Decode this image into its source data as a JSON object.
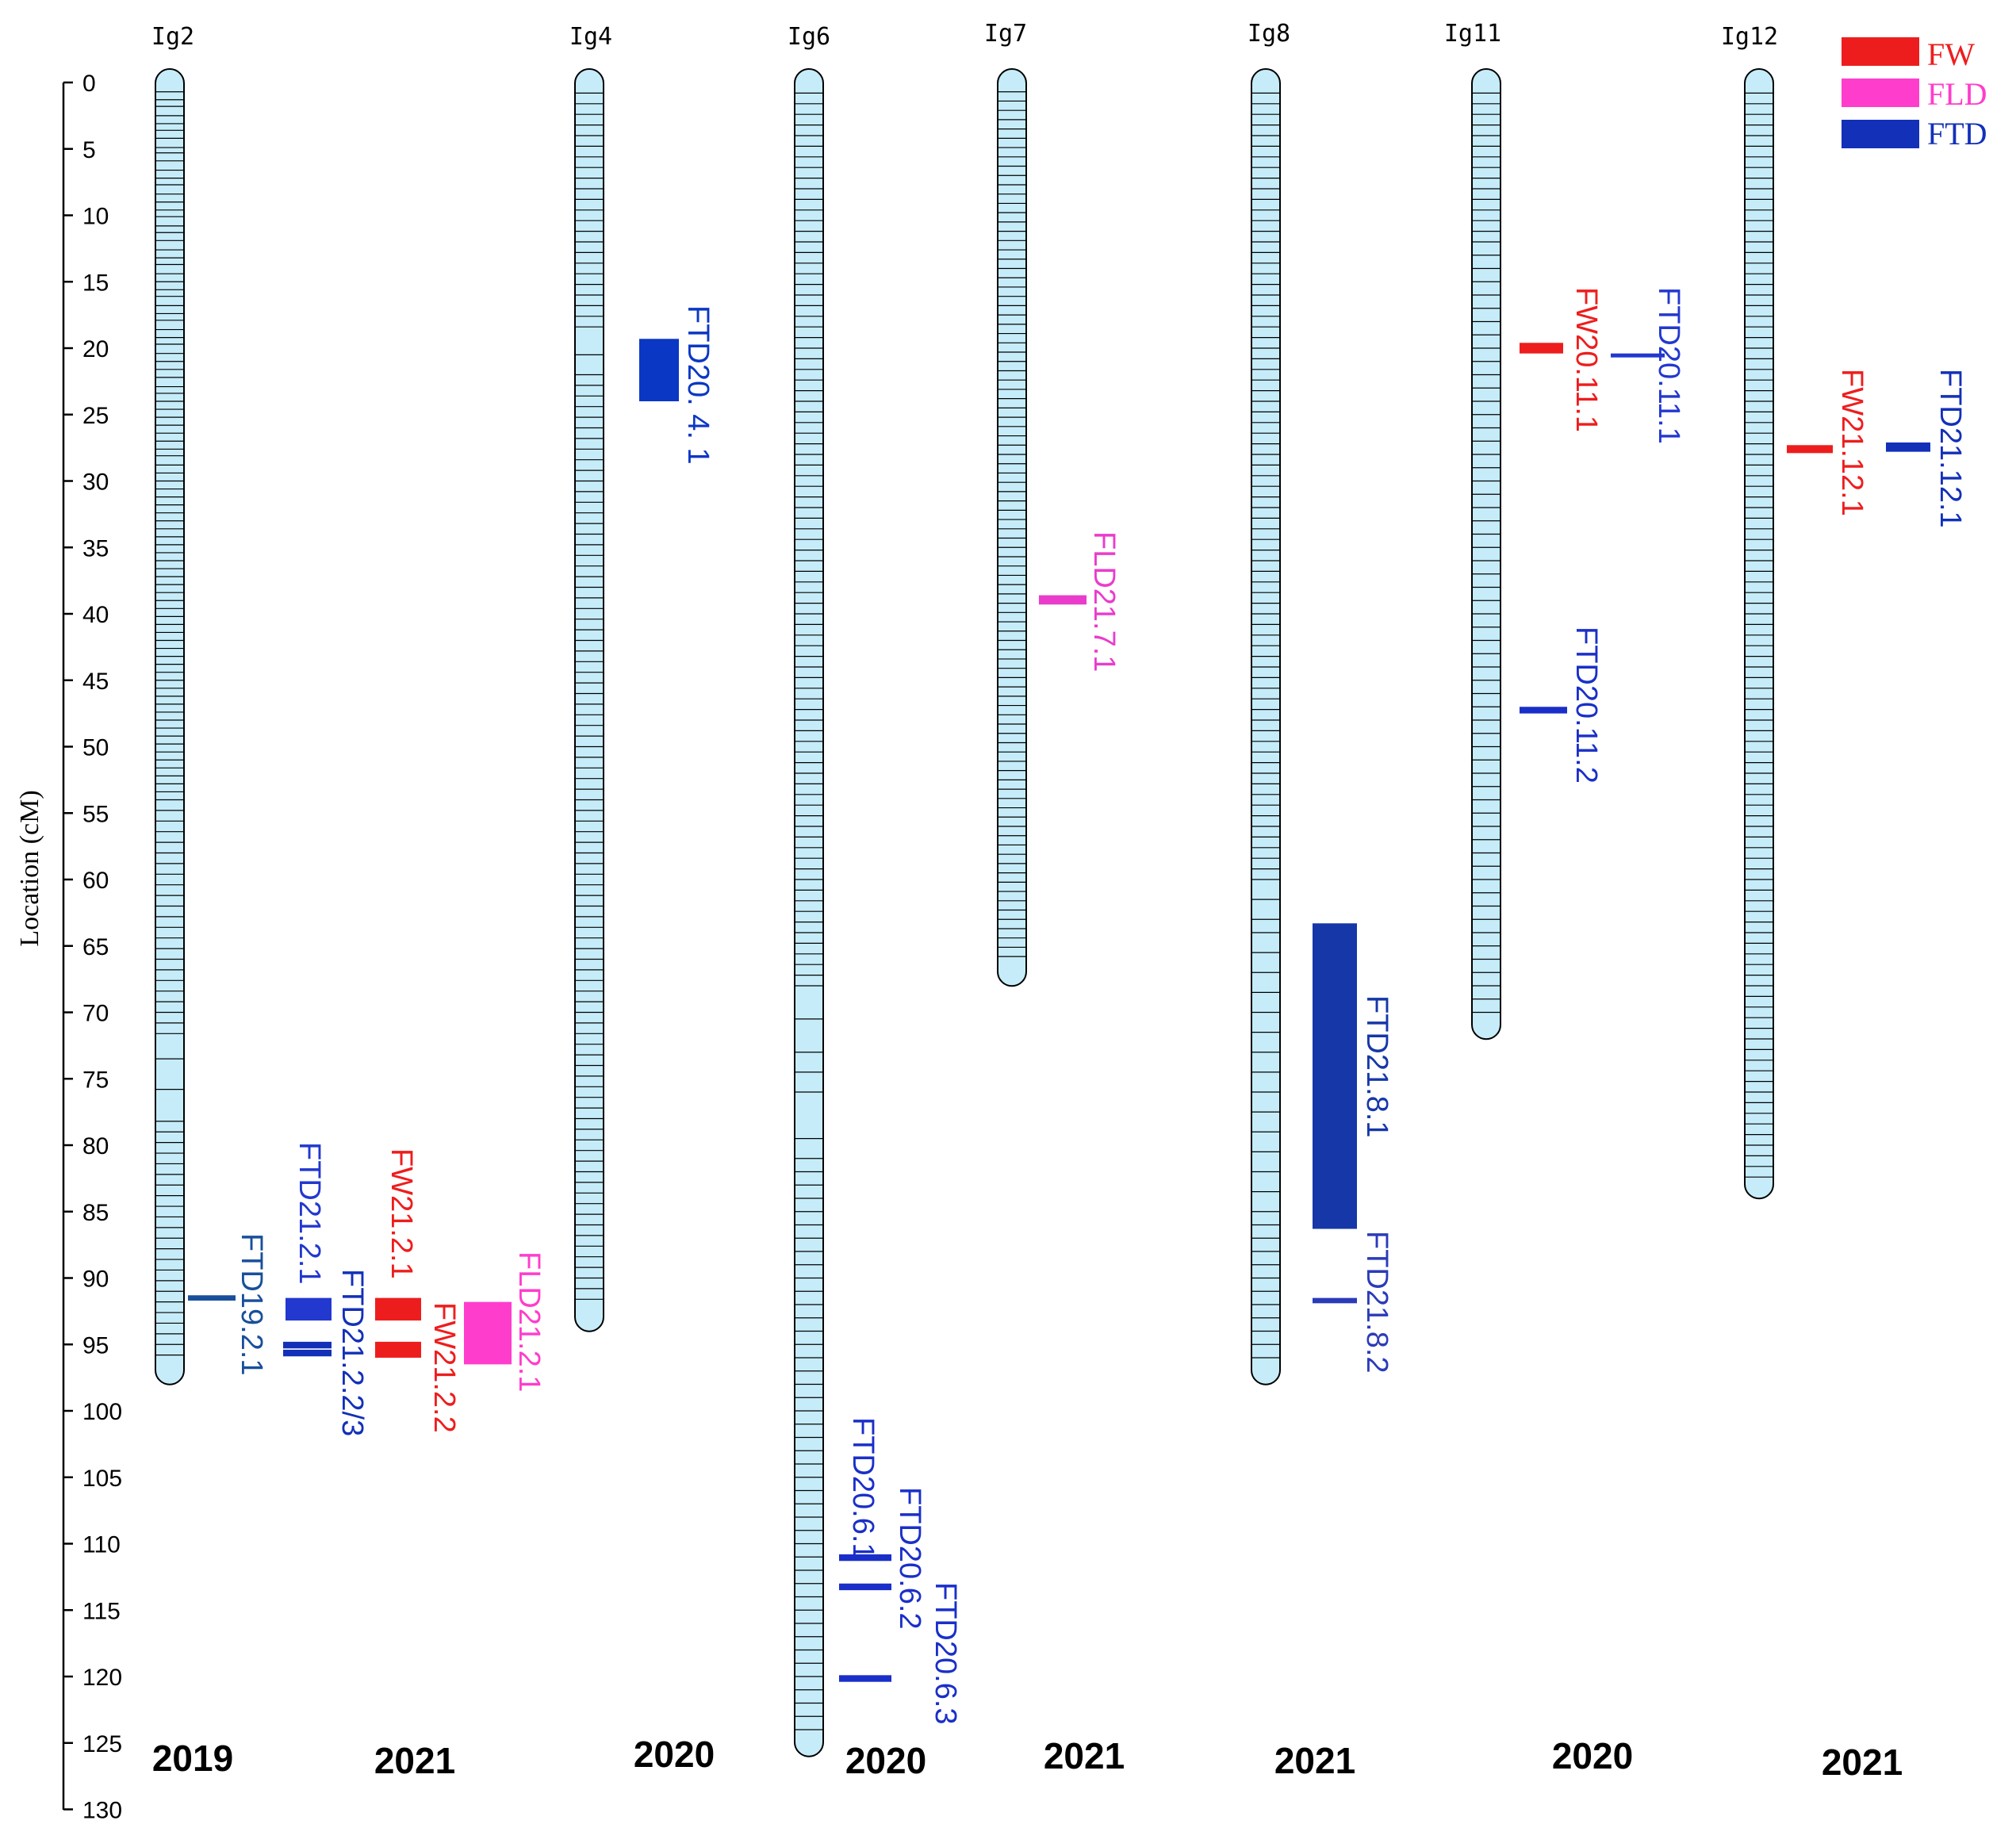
{
  "axis": {
    "title": "Location (cM)",
    "min": 0,
    "max": 130,
    "step": 5,
    "tick_labels": [
      "0",
      "5",
      "10",
      "15",
      "20",
      "25",
      "30",
      "35",
      "40",
      "45",
      "50",
      "55",
      "60",
      "65",
      "70",
      "75",
      "80",
      "85",
      "90",
      "95",
      "100",
      "105",
      "110",
      "115",
      "120",
      "125",
      "130"
    ]
  },
  "legend": [
    {
      "label": "FW",
      "color": "#ee1d1d"
    },
    {
      "label": "FLD",
      "color": "#ff3dcc"
    },
    {
      "label": "FTD",
      "color": "#1330b8"
    }
  ],
  "chromosomes": [
    {
      "name": "Ig2",
      "length": 97,
      "markers": [
        0.7,
        1.3,
        1.8,
        2.5,
        3.1,
        3.6,
        4.2,
        4.9,
        5.3,
        5.9,
        6.6,
        7.2,
        7.7,
        8.4,
        9.0,
        9.6,
        10.1,
        10.8,
        11.3,
        11.9,
        12.6,
        13.2,
        13.7,
        14.4,
        15.0,
        15.6,
        16.1,
        16.8,
        17.4,
        17.9,
        18.6,
        19.2,
        19.7,
        20.4,
        21.0,
        21.6,
        22.2,
        22.9,
        23.4,
        24.0,
        24.6,
        25.2,
        25.8,
        26.4,
        27.0,
        27.6,
        28.1,
        28.8,
        29.4,
        30.0,
        30.6,
        31.2,
        31.8,
        32.4,
        33.0,
        33.6,
        34.2,
        34.8,
        35.4,
        36.0,
        36.6,
        37.2,
        37.8,
        38.4,
        39.0,
        39.6,
        40.2,
        40.8,
        41.4,
        42.0,
        42.6,
        43.2,
        43.8,
        44.4,
        45.0,
        45.6,
        46.2,
        46.8,
        47.4,
        48.0,
        48.6,
        49.2,
        49.8,
        50.4,
        51.0,
        51.6,
        52.2,
        52.8,
        53.4,
        54.0,
        54.8,
        55.6,
        56.4,
        57.2,
        58.0,
        58.8,
        59.6,
        60.4,
        61.2,
        62.0,
        62.8,
        63.6,
        64.4,
        65.2,
        66.0,
        66.8,
        67.6,
        68.4,
        69.2,
        70.0,
        70.8,
        71.6,
        73.5,
        75.8,
        78.2,
        79.0,
        79.8,
        80.6,
        81.4,
        82.2,
        83.0,
        83.8,
        84.6,
        85.4,
        86.2,
        87.0,
        87.8,
        88.6,
        89.4,
        90.2,
        91.0,
        91.8,
        92.6,
        93.4,
        94.2,
        95.0,
        95.8
      ]
    },
    {
      "name": "Ig4",
      "length": 93,
      "markers": [
        0.8,
        1.6,
        2.4,
        3.2,
        4.0,
        4.8,
        5.6,
        6.4,
        7.2,
        8.0,
        8.8,
        9.6,
        10.4,
        11.2,
        12.0,
        12.8,
        13.6,
        14.4,
        15.2,
        16.0,
        16.8,
        17.6,
        18.4,
        20.5,
        22.0,
        22.8,
        23.6,
        24.4,
        25.2,
        26.0,
        26.8,
        27.6,
        28.4,
        29.2,
        30.0,
        30.8,
        31.6,
        32.4,
        33.2,
        34.0,
        34.8,
        35.6,
        36.4,
        37.2,
        38.0,
        38.8,
        39.6,
        40.4,
        41.2,
        42.0,
        42.8,
        43.6,
        44.4,
        45.2,
        46.0,
        46.8,
        47.6,
        48.4,
        49.2,
        50.0,
        50.8,
        51.6,
        52.4,
        53.2,
        54.0,
        54.8,
        55.6,
        56.4,
        57.2,
        58.0,
        58.8,
        59.6,
        60.4,
        61.2,
        62.0,
        62.8,
        63.6,
        64.4,
        65.2,
        66.0,
        66.8,
        67.6,
        68.4,
        69.2,
        70.0,
        70.8,
        71.6,
        72.4,
        73.2,
        74.0,
        74.8,
        75.6,
        76.4,
        77.2,
        78.0,
        78.8,
        79.6,
        80.4,
        81.2,
        82.0,
        82.8,
        83.6,
        84.4,
        85.2,
        86.0,
        86.8,
        87.6,
        88.4,
        89.2,
        90.0,
        90.8,
        91.6
      ]
    },
    {
      "name": "Ig6",
      "length": 125,
      "markers": [
        0.8,
        1.6,
        2.4,
        3.2,
        4.0,
        4.8,
        5.6,
        6.4,
        7.2,
        8.0,
        8.8,
        9.6,
        10.4,
        11.2,
        12.0,
        12.8,
        13.6,
        14.4,
        15.2,
        16.0,
        16.8,
        17.6,
        18.4,
        19.2,
        20.0,
        20.8,
        21.6,
        22.4,
        23.2,
        24.0,
        24.8,
        25.6,
        26.4,
        27.2,
        28.0,
        28.8,
        29.6,
        30.4,
        31.2,
        32.0,
        32.8,
        33.6,
        34.4,
        35.2,
        36.0,
        36.8,
        37.6,
        38.4,
        39.2,
        40.0,
        40.8,
        41.6,
        42.4,
        43.2,
        44.0,
        44.8,
        45.6,
        46.4,
        47.2,
        48.0,
        48.8,
        49.6,
        50.4,
        51.2,
        52.0,
        52.8,
        53.6,
        54.4,
        55.2,
        56.0,
        56.8,
        57.6,
        58.4,
        59.2,
        60.0,
        60.8,
        61.6,
        62.4,
        63.2,
        64.0,
        64.8,
        65.6,
        66.4,
        67.2,
        68.0,
        70.5,
        73.0,
        74.5,
        76.0,
        79.5,
        81.0,
        82.0,
        83.0,
        84.0,
        85.0,
        86.0,
        87.0,
        88.0,
        89.0,
        90.0,
        91.0,
        92.0,
        93.0,
        94.0,
        95.0,
        96.0,
        97.0,
        98.0,
        99.0,
        100.0,
        101.0,
        102.0,
        103.0,
        104.0,
        105.0,
        106.0,
        107.0,
        108.0,
        109.0,
        110.0,
        111.0,
        112.0,
        113.0,
        114.0,
        115.0,
        116.0,
        117.0,
        118.0,
        119.0,
        120.0,
        121.0,
        122.0,
        123.0,
        124.0
      ]
    },
    {
      "name": "Ig7",
      "length": 67,
      "markers": [
        0.7,
        1.4,
        2.1,
        2.8,
        3.5,
        4.2,
        4.9,
        5.6,
        6.3,
        7.0,
        7.7,
        8.4,
        9.1,
        9.8,
        10.5,
        11.2,
        11.9,
        12.6,
        13.3,
        14.0,
        14.7,
        15.4,
        16.1,
        16.8,
        17.5,
        18.2,
        18.9,
        19.6,
        20.3,
        21.0,
        21.7,
        22.4,
        23.1,
        23.8,
        24.5,
        25.2,
        25.9,
        26.6,
        27.3,
        28.0,
        28.7,
        29.4,
        30.1,
        30.8,
        31.5,
        32.2,
        32.9,
        33.6,
        34.3,
        35.0,
        35.7,
        36.4,
        37.1,
        37.8,
        38.5,
        39.2,
        39.9,
        40.6,
        41.3,
        42.0,
        42.7,
        43.4,
        44.1,
        44.8,
        45.5,
        46.2,
        46.9,
        47.6,
        48.3,
        49.0,
        49.7,
        50.4,
        51.1,
        51.8,
        52.5,
        53.2,
        53.9,
        54.6,
        55.3,
        56.0,
        56.7,
        57.4,
        58.1,
        58.8,
        59.5,
        60.2,
        60.9,
        61.6,
        62.3,
        63.0,
        63.7,
        64.4,
        65.1,
        65.8
      ]
    },
    {
      "name": "Ig8",
      "length": 97,
      "markers": [
        0.8,
        1.6,
        2.4,
        3.2,
        4.0,
        4.8,
        5.6,
        6.4,
        7.2,
        8.0,
        8.8,
        9.6,
        10.4,
        11.2,
        12.0,
        12.8,
        13.6,
        14.4,
        15.2,
        16.0,
        16.8,
        17.6,
        18.4,
        19.2,
        20.0,
        20.8,
        21.6,
        22.4,
        23.2,
        24.0,
        24.8,
        25.6,
        26.4,
        27.2,
        28.0,
        28.8,
        29.6,
        30.4,
        31.2,
        32.0,
        32.8,
        33.6,
        34.4,
        35.2,
        36.0,
        36.8,
        37.6,
        38.4,
        39.2,
        40.0,
        40.8,
        41.6,
        42.4,
        43.2,
        44.0,
        44.8,
        45.6,
        46.4,
        47.2,
        48.0,
        48.8,
        49.6,
        50.4,
        51.2,
        52.0,
        52.8,
        53.6,
        54.4,
        55.2,
        56.0,
        56.8,
        57.6,
        58.4,
        59.2,
        60.0,
        61.5,
        63.0,
        64.0,
        65.5,
        67.0,
        68.5,
        70.0,
        71.5,
        73.0,
        74.5,
        76.0,
        77.5,
        79.0,
        80.5,
        82.0,
        83.5,
        85.0,
        86.0,
        87.0,
        88.0,
        89.0,
        90.0,
        91.0,
        92.0,
        93.0,
        94.0,
        95.0,
        96.0
      ]
    },
    {
      "name": "Ig11",
      "length": 71,
      "markers": [
        0.8,
        1.6,
        2.4,
        3.2,
        4.0,
        4.8,
        5.6,
        6.4,
        7.2,
        8.0,
        8.8,
        9.6,
        10.4,
        11.2,
        12.0,
        13.0,
        14.0,
        15.0,
        16.0,
        17.0,
        18.0,
        19.0,
        20.0,
        21.0,
        22.0,
        23.0,
        24.0,
        25.0,
        26.0,
        27.0,
        28.0,
        29.0,
        30.0,
        31.0,
        32.0,
        33.0,
        34.0,
        35.0,
        36.0,
        37.0,
        38.0,
        39.0,
        40.0,
        41.0,
        42.0,
        43.0,
        44.0,
        45.0,
        46.0,
        47.0,
        48.0,
        49.0,
        50.0,
        51.0,
        52.0,
        53.0,
        54.0,
        55.0,
        56.0,
        57.0,
        58.0,
        59.0,
        60.0,
        61.0,
        62.0,
        63.0,
        64.0,
        65.0,
        66.0,
        67.0,
        68.0,
        69.0,
        70.0
      ]
    },
    {
      "name": "Ig12",
      "length": 83,
      "markers": [
        0.8,
        1.6,
        2.4,
        3.2,
        4.0,
        4.8,
        5.6,
        6.4,
        7.2,
        8.0,
        8.8,
        9.6,
        10.4,
        11.2,
        12.0,
        12.8,
        13.6,
        14.4,
        15.2,
        16.0,
        16.8,
        17.6,
        18.4,
        19.2,
        20.0,
        20.8,
        21.6,
        22.4,
        23.2,
        24.0,
        24.8,
        25.6,
        26.4,
        27.2,
        28.0,
        28.8,
        29.6,
        30.4,
        31.2,
        32.0,
        32.8,
        33.6,
        34.4,
        35.2,
        36.0,
        36.8,
        37.6,
        38.4,
        39.2,
        40.0,
        40.8,
        41.6,
        42.4,
        43.2,
        44.0,
        44.8,
        45.6,
        46.4,
        47.2,
        48.0,
        48.8,
        49.6,
        50.4,
        51.2,
        52.0,
        52.8,
        53.6,
        54.4,
        55.2,
        56.0,
        56.8,
        57.6,
        58.4,
        59.2,
        60.0,
        60.8,
        61.6,
        62.4,
        63.2,
        64.0,
        64.8,
        65.6,
        66.4,
        67.2,
        68.0,
        68.8,
        69.6,
        70.4,
        71.2,
        72.0,
        72.8,
        73.6,
        74.4,
        75.2,
        76.0,
        76.8,
        77.6,
        78.4,
        79.2,
        80.0,
        80.8,
        81.6,
        82.4
      ]
    }
  ],
  "qtls": [
    {
      "label": "FTD19.2.1",
      "trait": "FTD",
      "chrom": "Ig2",
      "start": 91.3,
      "end": 91.7,
      "color": "#184f9a"
    },
    {
      "label": "FTD21.2.1",
      "trait": "FTD",
      "chrom": "Ig2",
      "start": 91.5,
      "end": 93.2,
      "color": "#2238cf"
    },
    {
      "label": "FTD21.2.2/3",
      "trait": "FTD",
      "chrom": "Ig2",
      "start": 94.8,
      "end": 95.3,
      "color": "#1330b8"
    },
    {
      "label": "FW21.2.1",
      "trait": "FW",
      "chrom": "Ig2",
      "start": 91.5,
      "end": 93.2,
      "color": "#ee1d1d"
    },
    {
      "label": "FW21.2.2",
      "trait": "FW",
      "chrom": "Ig2",
      "start": 94.8,
      "end": 96.0,
      "color": "#ee1d1d"
    },
    {
      "label": "FLD21.2.1",
      "trait": "FLD",
      "chrom": "Ig2",
      "start": 91.8,
      "end": 96.5,
      "color": "#ff3dcc"
    },
    {
      "label": "FTD20. 4. 1",
      "trait": "FTD",
      "chrom": "Ig4",
      "start": 19.3,
      "end": 24.0,
      "color": "#0a37c4"
    },
    {
      "label": "FTD20.6.1",
      "trait": "FTD",
      "chrom": "Ig6",
      "start": 110.8,
      "end": 111.3,
      "color": "#1a2fc8"
    },
    {
      "label": "FTD20.6.2",
      "trait": "FTD",
      "chrom": "Ig6",
      "start": 113.0,
      "end": 113.5,
      "color": "#1a2fc8"
    },
    {
      "label": "FTD20.6.3",
      "trait": "FTD",
      "chrom": "Ig6",
      "start": 119.9,
      "end": 120.4,
      "color": "#1a2fc8"
    },
    {
      "label": "FLD21.7.1",
      "trait": "FLD",
      "chrom": "Ig7",
      "start": 38.6,
      "end": 39.3,
      "color": "#ea3ccc"
    },
    {
      "label": "FTD21.8.1",
      "trait": "FTD",
      "chrom": "Ig8",
      "start": 63.3,
      "end": 86.3,
      "color": "#1537a8"
    },
    {
      "label": "FTD21.8.2",
      "trait": "FTD",
      "chrom": "Ig8",
      "start": 91.5,
      "end": 91.9,
      "color": "#2b3bb8"
    },
    {
      "label": "FW20.11.1",
      "trait": "FW",
      "chrom": "Ig11",
      "start": 19.6,
      "end": 20.4,
      "color": "#ee1d1d"
    },
    {
      "label": "FTD20.11.1",
      "trait": "FTD",
      "chrom": "Ig11",
      "start": 20.4,
      "end": 20.6,
      "color": "#2238cf"
    },
    {
      "label": "FTD20.11.2",
      "trait": "FTD",
      "chrom": "Ig11",
      "start": 47.0,
      "end": 47.5,
      "color": "#1a2fc8"
    },
    {
      "label": "FW21.12.1",
      "trait": "FW",
      "chrom": "Ig12",
      "start": 27.3,
      "end": 27.9,
      "color": "#ee1d1d"
    },
    {
      "label": "FTD21.12.1",
      "trait": "FTD",
      "chrom": "Ig12",
      "start": 27.1,
      "end": 27.8,
      "color": "#1330b8"
    }
  ],
  "years": [
    "2019",
    "2021",
    "2020",
    "2020",
    "2021",
    "2021",
    "2020",
    "2021"
  ]
}
